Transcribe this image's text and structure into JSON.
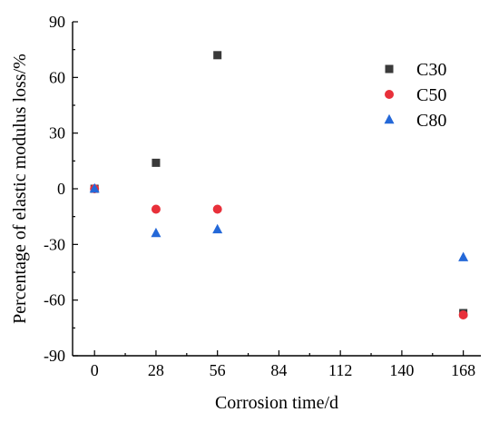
{
  "chart_data": {
    "type": "scatter",
    "title": "",
    "xlabel": "Corrosion time/d",
    "ylabel": "Percentage of elastic modulus loss/%",
    "x_ticks": [
      0,
      28,
      56,
      84,
      112,
      140,
      168
    ],
    "y_ticks": [
      90,
      60,
      30,
      0,
      -30,
      -60,
      -90
    ],
    "xlim": [
      -10,
      176
    ],
    "ylim": [
      -90,
      90
    ],
    "grid": false,
    "legend_position": "top-right",
    "series": [
      {
        "name": "C30",
        "marker": "square",
        "color": "#3a3a3a",
        "points": [
          {
            "x": 0,
            "y": 0
          },
          {
            "x": 28,
            "y": 14
          },
          {
            "x": 56,
            "y": 72
          },
          {
            "x": 168,
            "y": -67
          }
        ]
      },
      {
        "name": "C50",
        "marker": "circle",
        "color": "#e8303a",
        "points": [
          {
            "x": 0,
            "y": 0
          },
          {
            "x": 28,
            "y": -11
          },
          {
            "x": 56,
            "y": -11
          },
          {
            "x": 168,
            "y": -68
          }
        ]
      },
      {
        "name": "C80",
        "marker": "triangle",
        "color": "#2468d8",
        "points": [
          {
            "x": 0,
            "y": 0
          },
          {
            "x": 28,
            "y": -24
          },
          {
            "x": 56,
            "y": -22
          },
          {
            "x": 168,
            "y": -37
          }
        ]
      }
    ]
  }
}
